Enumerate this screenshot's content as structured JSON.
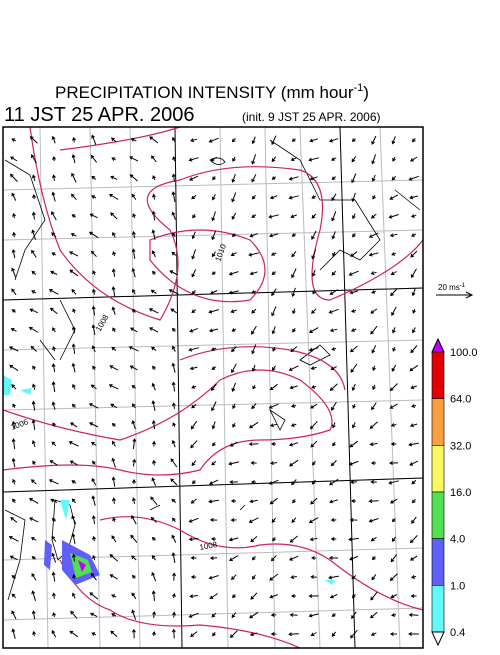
{
  "header": {
    "title": "PRECIPITATION INTENSITY (mm hour",
    "title_sup": "-1",
    "title_end": ")",
    "valid_time": "11 JST 25 APR. 2006",
    "init_time": "(init. 9 JST 25 APR. 2006)"
  },
  "reference_vector": {
    "label": "20 ms",
    "label_sup": "-1"
  },
  "map": {
    "contour_labels": [
      "1006",
      "1008",
      "1008",
      "1010"
    ]
  },
  "colorbar": {
    "levels": [
      {
        "label": "100.0",
        "color": "#e00000"
      },
      {
        "label": "64.0",
        "color": "#f8a040"
      },
      {
        "label": "32.0",
        "color": "#f8f860"
      },
      {
        "label": "16.0",
        "color": "#50e050"
      },
      {
        "label": "4.0",
        "color": "#6060f8"
      },
      {
        "label": "1.0",
        "color": "#60f8f8"
      },
      {
        "label": "0.4",
        "color": "#ffffff"
      }
    ],
    "over_color": "#c000ff"
  }
}
